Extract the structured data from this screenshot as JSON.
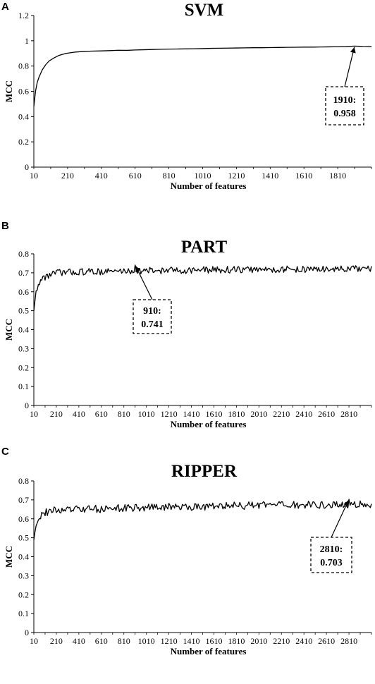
{
  "chart_data": [
    {
      "type": "line",
      "panel": "A",
      "title": "SVM",
      "xlabel": "Number of features",
      "ylabel": "MCC",
      "x_ticks": [
        10,
        210,
        410,
        610,
        810,
        1010,
        1210,
        1410,
        1610,
        1810
      ],
      "y_ticks": [
        "0",
        "0.2",
        "0.4",
        "0.6",
        "0.8",
        "1",
        "1.2"
      ],
      "xlim": [
        10,
        2010
      ],
      "ylim": [
        0,
        1.2
      ],
      "series": [
        {
          "x": [
            10,
            20,
            30,
            40,
            60,
            80,
            100,
            130,
            160,
            200,
            250,
            300,
            350,
            410,
            460,
            510,
            560,
            610,
            660,
            710,
            760,
            810,
            860,
            910,
            960,
            1010,
            1060,
            1110,
            1160,
            1210,
            1260,
            1310,
            1360,
            1410,
            1460,
            1510,
            1560,
            1610,
            1660,
            1710,
            1760,
            1810,
            1860,
            1910,
            1960,
            2010
          ],
          "y": [
            0.48,
            0.6,
            0.67,
            0.71,
            0.77,
            0.81,
            0.84,
            0.865,
            0.885,
            0.9,
            0.91,
            0.915,
            0.918,
            0.92,
            0.922,
            0.925,
            0.924,
            0.927,
            0.929,
            0.931,
            0.933,
            0.934,
            0.935,
            0.936,
            0.937,
            0.938,
            0.94,
            0.941,
            0.942,
            0.943,
            0.944,
            0.945,
            0.945,
            0.946,
            0.947,
            0.948,
            0.949,
            0.95,
            0.95,
            0.951,
            0.952,
            0.953,
            0.954,
            0.958,
            0.955,
            0.954
          ]
        }
      ],
      "annotation": {
        "x": 1910,
        "y": 0.958,
        "label_line1": "1910:",
        "label_line2": "0.958"
      }
    },
    {
      "type": "line",
      "panel": "B",
      "title": "PART",
      "xlabel": "Number of features",
      "ylabel": "MCC",
      "x_ticks": [
        10,
        210,
        410,
        610,
        810,
        1010,
        1210,
        1410,
        1610,
        1810,
        2010,
        2210,
        2410,
        2610,
        2810
      ],
      "y_ticks": [
        "0",
        "0.1",
        "0.2",
        "0.3",
        "0.4",
        "0.5",
        "0.6",
        "0.7",
        "0.8"
      ],
      "xlim": [
        10,
        3010
      ],
      "ylim": [
        0,
        0.8
      ],
      "series": [
        {
          "x_start": 10,
          "x_step": 10,
          "noise_amplitude": 0.018,
          "envelope": [
            [
              10,
              0.5
            ],
            [
              30,
              0.6
            ],
            [
              60,
              0.65
            ],
            [
              100,
              0.675
            ],
            [
              150,
              0.69
            ],
            [
              210,
              0.7
            ],
            [
              410,
              0.705
            ],
            [
              910,
              0.71
            ],
            [
              1510,
              0.715
            ],
            [
              2210,
              0.718
            ],
            [
              3010,
              0.72
            ]
          ],
          "peak": {
            "x": 910,
            "y": 0.741
          }
        }
      ],
      "annotation": {
        "x": 910,
        "y": 0.741,
        "label_line1": "910:",
        "label_line2": "0.741"
      }
    },
    {
      "type": "line",
      "panel": "C",
      "title": "RIPPER",
      "xlabel": "Number of features",
      "ylabel": "MCC",
      "x_ticks": [
        10,
        210,
        410,
        610,
        810,
        1010,
        1210,
        1410,
        1610,
        1810,
        2010,
        2210,
        2410,
        2610,
        2810
      ],
      "y_ticks": [
        "0",
        "0.1",
        "0.2",
        "0.3",
        "0.4",
        "0.5",
        "0.6",
        "0.7",
        "0.8"
      ],
      "xlim": [
        10,
        3010
      ],
      "ylim": [
        0,
        0.8
      ],
      "series": [
        {
          "x_start": 10,
          "x_step": 10,
          "noise_amplitude": 0.02,
          "envelope": [
            [
              10,
              0.49
            ],
            [
              30,
              0.57
            ],
            [
              60,
              0.61
            ],
            [
              100,
              0.63
            ],
            [
              150,
              0.64
            ],
            [
              210,
              0.645
            ],
            [
              410,
              0.65
            ],
            [
              1010,
              0.66
            ],
            [
              1610,
              0.667
            ],
            [
              2210,
              0.672
            ],
            [
              3010,
              0.675
            ]
          ],
          "peak": {
            "x": 2810,
            "y": 0.703
          }
        }
      ],
      "annotation": {
        "x": 2810,
        "y": 0.703,
        "label_line1": "2810:",
        "label_line2": "0.703"
      }
    }
  ]
}
